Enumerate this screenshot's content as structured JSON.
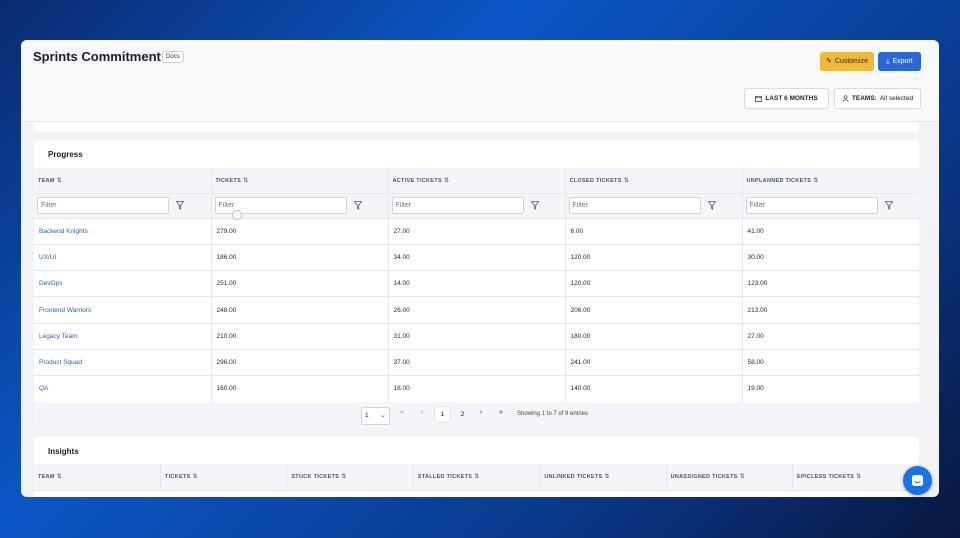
{
  "header": {
    "title": "Sprints Commitment",
    "docs_badge": "Docs",
    "customize_label": "Customize",
    "export_label": "Export",
    "months_filter": "LAST 6 MONTHS",
    "teams_filter_prefix": "TEAMS:",
    "teams_filter_value": "All selected"
  },
  "progress": {
    "title": "Progress",
    "columns": [
      "TEAM",
      "TICKETS",
      "ACTIVE TICKETS",
      "CLOSED TICKETS",
      "UNPLANNED TICKETS"
    ],
    "filter_placeholder": "Filter",
    "rows": [
      {
        "team": "Backend Knights",
        "tickets": "279.00",
        "active": "27.00",
        "closed": "6.00",
        "unplanned": "41.00"
      },
      {
        "team": "UX/UI",
        "tickets": "186.00",
        "active": "34.00",
        "closed": "120.00",
        "unplanned": "30.00"
      },
      {
        "team": "DevOps",
        "tickets": "251.00",
        "active": "14.00",
        "closed": "120.00",
        "unplanned": "123.00"
      },
      {
        "team": "Frontend Warriors",
        "tickets": "248.00",
        "active": "26.00",
        "closed": "206.00",
        "unplanned": "213.00"
      },
      {
        "team": "Legacy Team",
        "tickets": "210.00",
        "active": "31.00",
        "closed": "180.00",
        "unplanned": "27.00"
      },
      {
        "team": "Product Squad",
        "tickets": "296.00",
        "active": "37.00",
        "closed": "241.00",
        "unplanned": "58.00"
      },
      {
        "team": "QA",
        "tickets": "160.00",
        "active": "18.00",
        "closed": "140.00",
        "unplanned": "19.00"
      }
    ],
    "pager": {
      "page_size": "1",
      "pages": [
        "1",
        "2"
      ],
      "info": "Showing 1 to 7 of 9 entries"
    }
  },
  "insights": {
    "title": "Insights",
    "columns": [
      "TEAM",
      "TICKETS",
      "STUCK TICKETS",
      "STALLED TICKETS",
      "UNLINKED TICKETS",
      "UNASSIGNED TICKETS",
      "EPICLESS TICKETS"
    ]
  },
  "colors": {
    "accent": "#2b66d6",
    "customize": "#efb93c",
    "link": "#2a5fb3"
  }
}
